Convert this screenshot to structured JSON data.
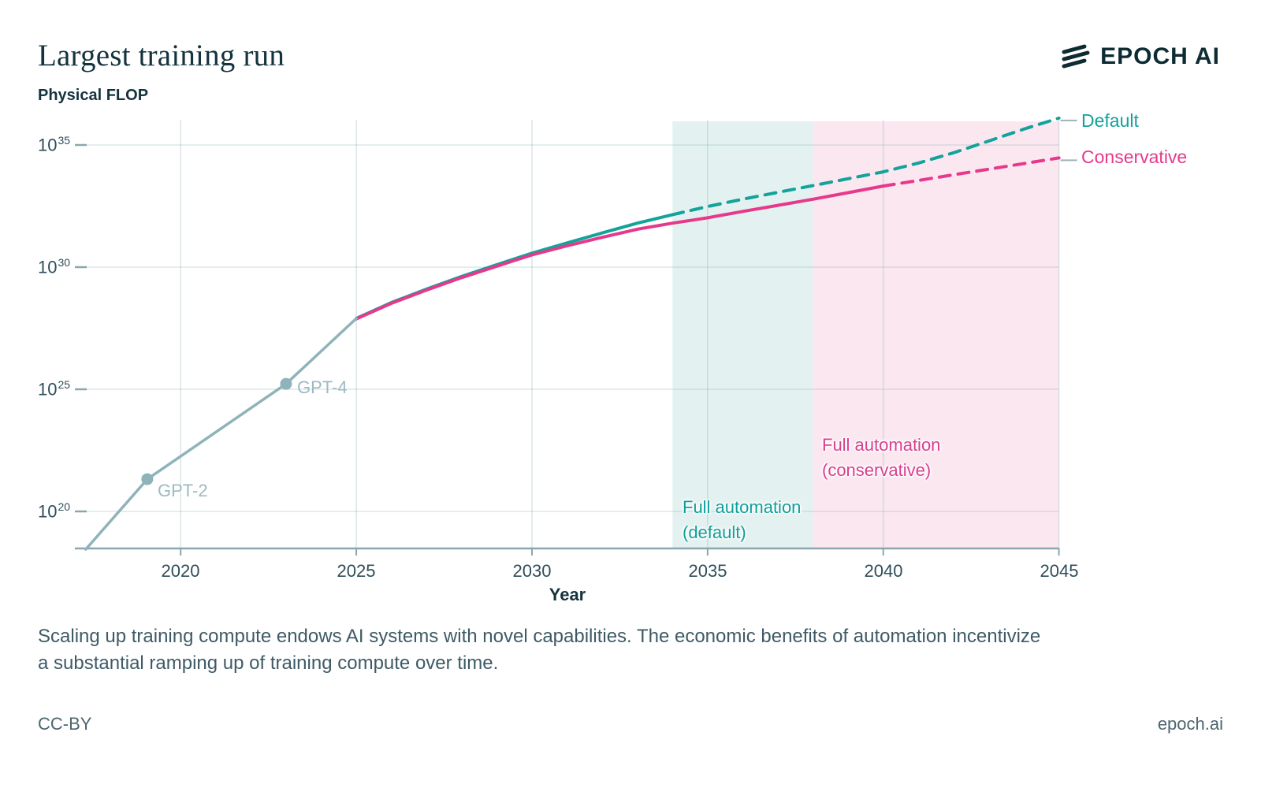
{
  "header": {
    "title": "Largest training run",
    "unit_label": "Physical FLOP",
    "brand": "EPOCH AI"
  },
  "chart_data": {
    "type": "line",
    "title": "Largest training run",
    "ylabel": "Physical FLOP",
    "xlabel": "Year",
    "grid": true,
    "x_axis": {
      "min": 2017.2,
      "max": 2045,
      "ticks": [
        2020,
        2025,
        2030,
        2035,
        2040,
        2045
      ]
    },
    "y_axis": {
      "scale": "log10",
      "min_log10": 18.4,
      "max_log10": 36.2,
      "ticks": [
        {
          "base": "10",
          "exp": "20"
        },
        {
          "base": "10",
          "exp": "25"
        },
        {
          "base": "10",
          "exp": "30"
        },
        {
          "base": "10",
          "exp": "35"
        }
      ],
      "ticks_log10": [
        20,
        25,
        30,
        35
      ]
    },
    "series": [
      {
        "name": "Historical",
        "color": "#8FB3BA",
        "style": "solid",
        "width": 3.5,
        "points_year_log10flop": [
          [
            2017.3,
            18.45
          ],
          [
            2019.05,
            21.32
          ],
          [
            2023.0,
            25.22
          ],
          [
            2025.0,
            27.9
          ]
        ]
      },
      {
        "name": "Default",
        "color": "#14A29B",
        "style": "solid-then-dashed",
        "dashed_from": 2034,
        "width": 4,
        "points_year_log10flop": [
          [
            2025,
            27.9
          ],
          [
            2026,
            28.55
          ],
          [
            2027,
            29.1
          ],
          [
            2028,
            29.62
          ],
          [
            2029,
            30.1
          ],
          [
            2030,
            30.57
          ],
          [
            2031,
            30.99
          ],
          [
            2032,
            31.4
          ],
          [
            2033,
            31.8
          ],
          [
            2034,
            32.15
          ],
          [
            2035,
            32.48
          ],
          [
            2036,
            32.78
          ],
          [
            2037,
            33.06
          ],
          [
            2038,
            33.34
          ],
          [
            2039,
            33.62
          ],
          [
            2040,
            33.9
          ],
          [
            2041,
            34.26
          ],
          [
            2042,
            34.68
          ],
          [
            2043,
            35.16
          ],
          [
            2044,
            35.65
          ],
          [
            2045,
            36.1
          ]
        ]
      },
      {
        "name": "Conservative",
        "color": "#E6398B",
        "style": "solid-then-dashed",
        "dashed_from": 2040,
        "width": 4,
        "points_year_log10flop": [
          [
            2025,
            27.88
          ],
          [
            2026,
            28.52
          ],
          [
            2027,
            29.06
          ],
          [
            2028,
            29.57
          ],
          [
            2029,
            30.04
          ],
          [
            2030,
            30.5
          ],
          [
            2031,
            30.87
          ],
          [
            2032,
            31.22
          ],
          [
            2033,
            31.55
          ],
          [
            2034,
            31.8
          ],
          [
            2035,
            32.02
          ],
          [
            2036,
            32.28
          ],
          [
            2037,
            32.53
          ],
          [
            2038,
            32.78
          ],
          [
            2039,
            33.05
          ],
          [
            2040,
            33.32
          ],
          [
            2041,
            33.55
          ],
          [
            2042,
            33.78
          ],
          [
            2043,
            34.01
          ],
          [
            2044,
            34.24
          ],
          [
            2045,
            34.47
          ]
        ]
      }
    ],
    "markers": [
      {
        "label": "GPT-2",
        "year": 2019.05,
        "log10flop": 21.32
      },
      {
        "label": "GPT-4",
        "year": 2023.0,
        "log10flop": 25.22
      }
    ],
    "regions": [
      {
        "label_lines": [
          "Full automation",
          "(default)"
        ],
        "from": 2034,
        "to": 2038,
        "fill": "#E3F2F0",
        "label_color": "#0F9E99"
      },
      {
        "label_lines": [
          "Full automation",
          "(conservative)"
        ],
        "from": 2038,
        "to": 2045,
        "fill": "#FBE7F0",
        "label_color": "#D83F8E"
      }
    ],
    "legend": {
      "position": "right-of-plot",
      "entries": [
        {
          "label": "Default",
          "color": "#14A29B"
        },
        {
          "label": "Conservative",
          "color": "#E6398B"
        }
      ]
    },
    "colors": {
      "grid": "#E2EDEC",
      "axis": "#8BA6AD",
      "historical": "#8FB3BA",
      "default": "#14A29B",
      "conservative": "#E6398B"
    }
  },
  "caption": {
    "lines": [
      "Scaling up training compute endows AI systems with novel capabilities. The economic benefits of automation incentivize",
      "a substantial ramping up of training compute over time."
    ]
  },
  "footer": {
    "left": "CC-BY",
    "right": "epoch.ai"
  }
}
